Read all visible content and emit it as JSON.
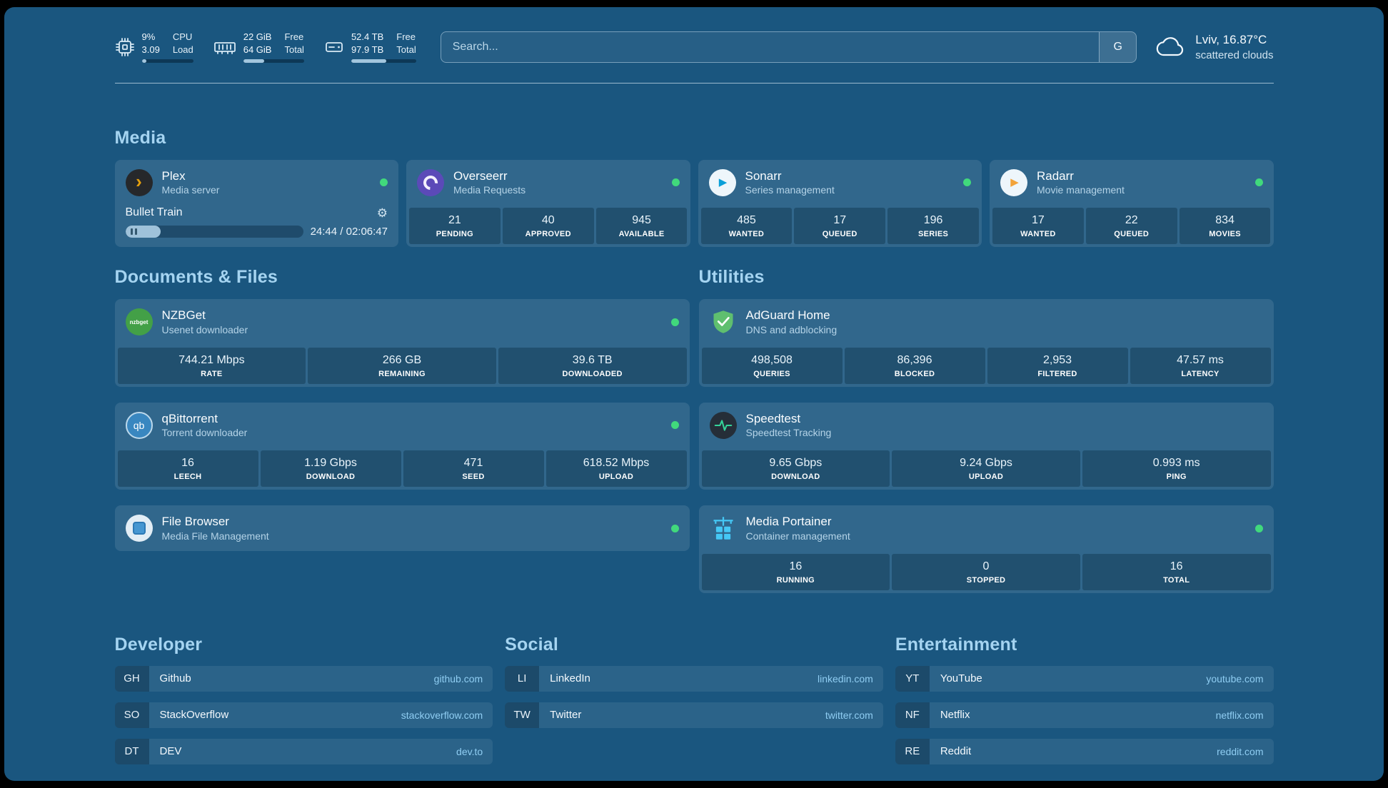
{
  "colors": {
    "page_bg": "#1a567f",
    "heading": "#a5d4f1",
    "status_online": "#41d97c"
  },
  "icons": {
    "plex_glyph": "›",
    "sonarr_glyph": "▶",
    "radarr_glyph": "▶",
    "gear_glyph": "⚙",
    "nzbget_text": "nzbget",
    "qbittorrent_text": "qb"
  },
  "topbar": {
    "resources": [
      {
        "icon": "cpu-icon",
        "row1_value": "9%",
        "row1_label": "CPU",
        "row2_value": "3.09",
        "row2_label": "Load",
        "percent": 9
      },
      {
        "icon": "memory-icon",
        "row1_value": "22 GiB",
        "row1_label": "Free",
        "row2_value": "64 GiB",
        "row2_label": "Total",
        "percent": 34
      },
      {
        "icon": "disk-icon",
        "row1_value": "52.4 TB",
        "row1_label": "Free",
        "row2_value": "97.9 TB",
        "row2_label": "Total",
        "percent": 54
      }
    ],
    "search": {
      "placeholder": "Search...",
      "provider_label": "G"
    },
    "weather": {
      "location": "Lviv, 16.87°C",
      "condition": "scattered clouds"
    }
  },
  "media": {
    "title": "Media",
    "plex": {
      "name": "Plex",
      "subtitle": "Media server",
      "status": "online",
      "player_title": "Bullet Train",
      "player_time": "24:44 / 02:06:47",
      "progress_percent": 20
    },
    "overseerr": {
      "name": "Overseerr",
      "subtitle": "Media Requests",
      "status": "online",
      "stats": [
        {
          "value": "21",
          "label": "PENDING"
        },
        {
          "value": "40",
          "label": "APPROVED"
        },
        {
          "value": "945",
          "label": "AVAILABLE"
        }
      ]
    },
    "sonarr": {
      "name": "Sonarr",
      "subtitle": "Series management",
      "status": "online",
      "stats": [
        {
          "value": "485",
          "label": "WANTED"
        },
        {
          "value": "17",
          "label": "QUEUED"
        },
        {
          "value": "196",
          "label": "SERIES"
        }
      ]
    },
    "radarr": {
      "name": "Radarr",
      "subtitle": "Movie management",
      "status": "online",
      "stats": [
        {
          "value": "17",
          "label": "WANTED"
        },
        {
          "value": "22",
          "label": "QUEUED"
        },
        {
          "value": "834",
          "label": "MOVIES"
        }
      ]
    }
  },
  "documents": {
    "title": "Documents & Files",
    "nzbget": {
      "name": "NZBGet",
      "subtitle": "Usenet downloader",
      "status": "online",
      "stats": [
        {
          "value": "744.21 Mbps",
          "label": "RATE"
        },
        {
          "value": "266 GB",
          "label": "REMAINING"
        },
        {
          "value": "39.6 TB",
          "label": "DOWNLOADED"
        }
      ]
    },
    "qbittorrent": {
      "name": "qBittorrent",
      "subtitle": "Torrent downloader",
      "status": "online",
      "stats": [
        {
          "value": "16",
          "label": "LEECH"
        },
        {
          "value": "1.19 Gbps",
          "label": "DOWNLOAD"
        },
        {
          "value": "471",
          "label": "SEED"
        },
        {
          "value": "618.52 Mbps",
          "label": "UPLOAD"
        }
      ]
    },
    "filebrowser": {
      "name": "File Browser",
      "subtitle": "Media File Management",
      "status": "online"
    }
  },
  "utilities": {
    "title": "Utilities",
    "adguard": {
      "name": "AdGuard Home",
      "subtitle": "DNS and adblocking",
      "stats": [
        {
          "value": "498,508",
          "label": "QUERIES"
        },
        {
          "value": "86,396",
          "label": "BLOCKED"
        },
        {
          "value": "2,953",
          "label": "FILTERED"
        },
        {
          "value": "47.57 ms",
          "label": "LATENCY"
        }
      ]
    },
    "speedtest": {
      "name": "Speedtest",
      "subtitle": "Speedtest Tracking",
      "stats": [
        {
          "value": "9.65 Gbps",
          "label": "DOWNLOAD"
        },
        {
          "value": "9.24 Gbps",
          "label": "UPLOAD"
        },
        {
          "value": "0.993 ms",
          "label": "PING"
        }
      ]
    },
    "portainer": {
      "name": "Media Portainer",
      "subtitle": "Container management",
      "status": "online",
      "stats": [
        {
          "value": "16",
          "label": "RUNNING"
        },
        {
          "value": "0",
          "label": "STOPPED"
        },
        {
          "value": "16",
          "label": "TOTAL"
        }
      ]
    }
  },
  "bookmarks": [
    {
      "title": "Developer",
      "items": [
        {
          "abbr": "GH",
          "name": "Github",
          "domain": "github.com"
        },
        {
          "abbr": "SO",
          "name": "StackOverflow",
          "domain": "stackoverflow.com"
        },
        {
          "abbr": "DT",
          "name": "DEV",
          "domain": "dev.to"
        }
      ]
    },
    {
      "title": "Social",
      "items": [
        {
          "abbr": "LI",
          "name": "LinkedIn",
          "domain": "linkedin.com"
        },
        {
          "abbr": "TW",
          "name": "Twitter",
          "domain": "twitter.com"
        }
      ]
    },
    {
      "title": "Entertainment",
      "items": [
        {
          "abbr": "YT",
          "name": "YouTube",
          "domain": "youtube.com"
        },
        {
          "abbr": "NF",
          "name": "Netflix",
          "domain": "netflix.com"
        },
        {
          "abbr": "RE",
          "name": "Reddit",
          "domain": "reddit.com"
        }
      ]
    }
  ]
}
